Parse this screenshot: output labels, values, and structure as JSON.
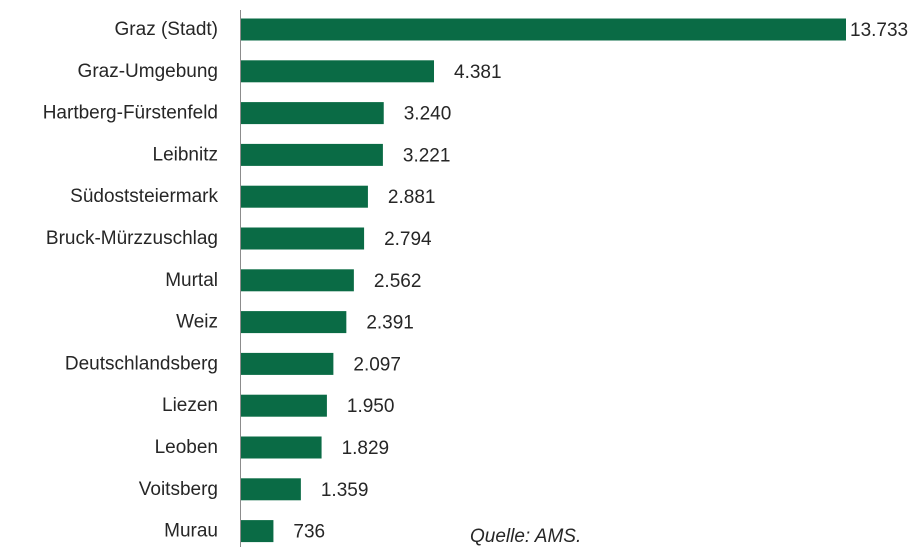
{
  "chart_data": {
    "type": "bar",
    "orientation": "horizontal",
    "categories": [
      "Graz (Stadt)",
      "Graz-Umgebung",
      "Hartberg-Fürstenfeld",
      "Leibnitz",
      "Südoststeiermark",
      "Bruck-Mürzzuschlag",
      "Murtal",
      "Weiz",
      "Deutschlandsberg",
      "Liezen",
      "Leoben",
      "Voitsberg",
      "Murau"
    ],
    "values": [
      13733,
      4381,
      3240,
      3221,
      2881,
      2794,
      2562,
      2391,
      2097,
      1950,
      1829,
      1359,
      736
    ],
    "value_labels": [
      "13.733",
      "4.381",
      "3.240",
      "3.221",
      "2.881",
      "2.794",
      "2.562",
      "2.391",
      "2.097",
      "1.950",
      "1.829",
      "1.359",
      "736"
    ],
    "xlim": [
      0,
      13733
    ],
    "grid": false,
    "bar_color": "#0a6b45"
  },
  "source": "Quelle: AMS."
}
